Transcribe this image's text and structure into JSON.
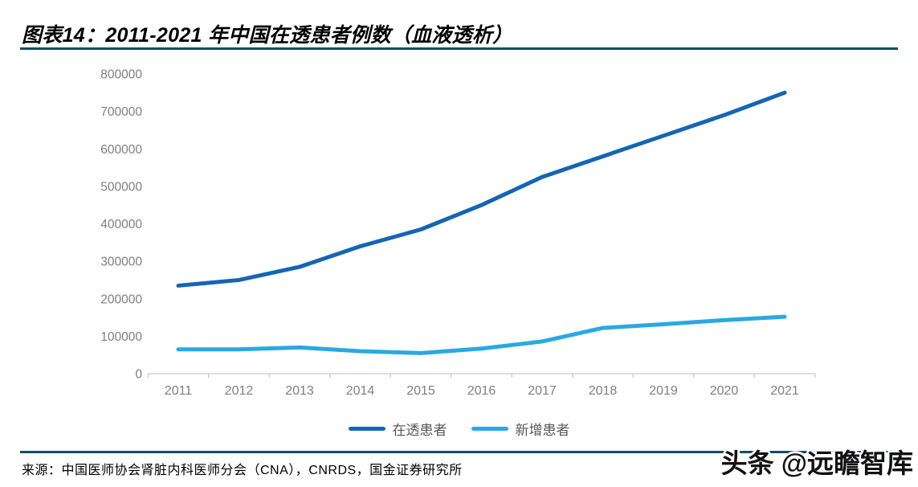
{
  "header": {
    "title": "图表14：2011-2021 年中国在透患者例数（血液透析）",
    "rule_color": "#114d68"
  },
  "footer": {
    "source": "来源：中国医师协会肾脏内科医师分会（CNA），CNRDS，国金证券研究所",
    "watermark": "头条 @远瞻智库"
  },
  "chart_data": {
    "type": "line",
    "title": "2011-2021 年中国在透患者例数（血液透析）",
    "categories": [
      "2011",
      "2012",
      "2013",
      "2014",
      "2015",
      "2016",
      "2017",
      "2018",
      "2019",
      "2020",
      "2021"
    ],
    "series": [
      {
        "name": "在透患者",
        "color": "#1565b4",
        "values": [
          235000,
          250000,
          285000,
          340000,
          385000,
          450000,
          525000,
          580000,
          635000,
          690000,
          750000
        ]
      },
      {
        "name": "新增患者",
        "color": "#29a9e1",
        "values": [
          65000,
          65000,
          70000,
          60000,
          55000,
          67000,
          86000,
          122000,
          132000,
          143000,
          152000
        ]
      }
    ],
    "xlabel": "",
    "ylabel": "",
    "ylim": [
      0,
      800000
    ],
    "ytick_step": 100000,
    "grid": false,
    "legend_position": "bottom",
    "axis_color": "#c9c9c9",
    "tick_label_color": "#7f7f7f"
  }
}
